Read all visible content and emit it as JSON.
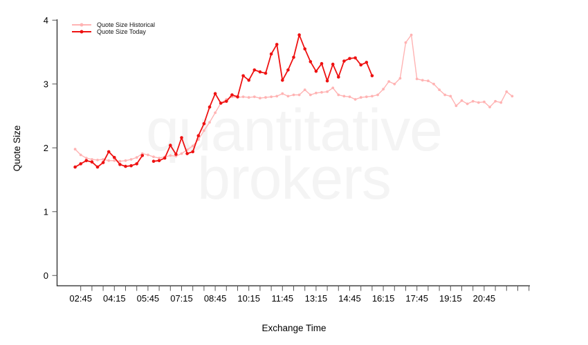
{
  "watermark": {
    "line1": "quantitative",
    "line2": "brokers",
    "color": "#f4f4f4"
  },
  "legend": {
    "items": [
      {
        "label": "Quote Size Historical",
        "color": "#ffb3b3"
      },
      {
        "label": "Quote Size Today",
        "color": "#ee1111"
      }
    ]
  },
  "chart_data": {
    "type": "line",
    "title": "",
    "xlabel": "Exchange Time",
    "ylabel": "Quote Size",
    "ylim": [
      0,
      4
    ],
    "y_ticks": [
      0,
      1,
      2,
      3,
      4
    ],
    "x_tick_labels": [
      "02:45",
      "04:15",
      "05:45",
      "07:15",
      "08:45",
      "10:15",
      "11:45",
      "13:15",
      "14:45",
      "16:15",
      "17:45",
      "19:15",
      "20:45"
    ],
    "x_minor_tick_interval_minutes": 30,
    "x_tick_range": [
      "02:45",
      "22:45"
    ],
    "grid": false,
    "legend_position": "top-left",
    "x": [
      "02:30",
      "02:45",
      "03:00",
      "03:15",
      "03:30",
      "03:45",
      "04:00",
      "04:15",
      "04:30",
      "04:45",
      "05:00",
      "05:15",
      "05:30",
      "05:45",
      "06:00",
      "06:15",
      "06:30",
      "06:45",
      "07:00",
      "07:15",
      "07:30",
      "07:45",
      "08:00",
      "08:15",
      "08:30",
      "08:45",
      "09:00",
      "09:15",
      "09:30",
      "09:45",
      "10:00",
      "10:15",
      "10:30",
      "10:45",
      "11:00",
      "11:15",
      "11:30",
      "11:45",
      "12:00",
      "12:15",
      "12:30",
      "12:45",
      "13:00",
      "13:15",
      "13:30",
      "13:45",
      "14:00",
      "14:15",
      "14:30",
      "14:45",
      "15:00",
      "15:15",
      "15:30",
      "15:45",
      "16:00",
      "16:15",
      "16:30",
      "16:45",
      "17:00",
      "17:15",
      "17:30",
      "17:45",
      "18:00",
      "18:15",
      "18:30",
      "18:45",
      "19:00",
      "19:15",
      "19:30",
      "19:45",
      "20:00",
      "20:15",
      "20:30",
      "20:45",
      "21:00",
      "21:15",
      "21:30",
      "21:45",
      "22:00"
    ],
    "series": [
      {
        "name": "Quote Size Historical",
        "color": "#ffb3b3",
        "values": [
          1.98,
          1.89,
          1.84,
          1.82,
          1.81,
          1.82,
          1.8,
          1.8,
          1.79,
          1.8,
          1.82,
          1.85,
          1.91,
          1.89,
          1.86,
          1.84,
          1.86,
          1.88,
          1.87,
          1.91,
          1.97,
          2.03,
          2.13,
          2.27,
          2.4,
          2.55,
          2.7,
          2.76,
          2.8,
          2.79,
          2.8,
          2.79,
          2.8,
          2.78,
          2.79,
          2.8,
          2.81,
          2.85,
          2.81,
          2.83,
          2.83,
          2.91,
          2.83,
          2.86,
          2.87,
          2.88,
          2.94,
          2.83,
          2.81,
          2.8,
          2.76,
          2.79,
          2.8,
          2.81,
          2.83,
          2.92,
          3.04,
          3.0,
          3.09,
          3.65,
          3.77,
          3.08,
          3.06,
          3.05,
          3.0,
          2.91,
          2.83,
          2.81,
          2.66,
          2.74,
          2.69,
          2.73,
          2.71,
          2.72,
          2.64,
          2.73,
          2.71,
          2.88,
          2.81
        ]
      },
      {
        "name": "Quote Size Today",
        "color": "#ee1111",
        "values": [
          1.7,
          1.75,
          1.8,
          1.78,
          1.7,
          1.77,
          1.94,
          1.85,
          1.74,
          1.71,
          1.72,
          1.75,
          1.88,
          null,
          1.79,
          1.8,
          1.84,
          2.04,
          1.9,
          2.16,
          1.91,
          1.94,
          2.19,
          2.38,
          2.64,
          2.85,
          2.7,
          2.73,
          2.83,
          2.8,
          3.13,
          3.06,
          3.22,
          3.19,
          3.17,
          3.47,
          3.62,
          3.06,
          3.22,
          3.42,
          3.77,
          3.55,
          3.35,
          3.2,
          3.32,
          3.05,
          3.31,
          3.11,
          3.36,
          3.4,
          3.41,
          3.3,
          3.34,
          3.13
        ]
      }
    ]
  }
}
